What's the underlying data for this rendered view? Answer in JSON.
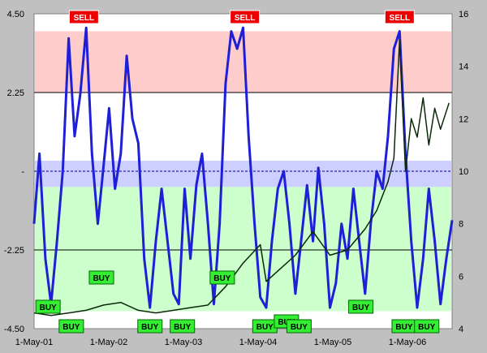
{
  "chart_data": {
    "type": "line",
    "title": "",
    "xlabel": "",
    "ylabel": "",
    "x_tick_labels": [
      "1-May-01",
      "1-May-02",
      "1-May-03",
      "1-May-04",
      "1-May-05",
      "1-May-06"
    ],
    "xlim": [
      "2001-02-01",
      "2007-01-31"
    ],
    "y_left": {
      "ticks": [
        "4.50",
        "2.25",
        "-",
        "-2.25",
        "-4.50"
      ],
      "ylim": [
        -4.5,
        4.5
      ]
    },
    "y_right": {
      "ticks": [
        "16",
        "14",
        "12",
        "10",
        "8",
        "6",
        "4"
      ],
      "ylim": [
        4,
        16
      ]
    },
    "bands": [
      {
        "name": "sell-zone",
        "from": 2.25,
        "to": 4.0,
        "color": "#ffcccc"
      },
      {
        "name": "neutral-zone",
        "from": -0.45,
        "to": 0.3,
        "color": "#cccfff"
      },
      {
        "name": "buy-zone",
        "from": -4.0,
        "to": -0.45,
        "color": "#ccffcc"
      }
    ],
    "reference_lines": [
      {
        "value": 2.25,
        "style": "solid"
      },
      {
        "value": -2.25,
        "style": "solid"
      },
      {
        "value": 0,
        "style": "dashed"
      }
    ],
    "series": [
      {
        "axis": "left",
        "color": "#1f1fd8",
        "points": [
          [
            "2001-02-01",
            -1.5
          ],
          [
            "2001-03-01",
            0.5
          ],
          [
            "2001-04-01",
            -2.5
          ],
          [
            "2001-05-01",
            -3.8
          ],
          [
            "2001-06-01",
            -2.0
          ],
          [
            "2001-07-01",
            0.0
          ],
          [
            "2001-08-01",
            3.8
          ],
          [
            "2001-09-01",
            1.0
          ],
          [
            "2001-10-01",
            2.2
          ],
          [
            "2001-11-01",
            4.1
          ],
          [
            "2001-12-01",
            0.5
          ],
          [
            "2002-01-01",
            -1.5
          ],
          [
            "2002-02-01",
            0.2
          ],
          [
            "2002-03-01",
            1.8
          ],
          [
            "2002-04-01",
            -0.5
          ],
          [
            "2002-05-01",
            0.5
          ],
          [
            "2002-06-01",
            3.3
          ],
          [
            "2002-07-01",
            1.5
          ],
          [
            "2002-08-01",
            0.8
          ],
          [
            "2002-09-01",
            -2.5
          ],
          [
            "2002-10-01",
            -3.9
          ],
          [
            "2002-11-01",
            -2.0
          ],
          [
            "2002-12-01",
            -0.5
          ],
          [
            "2003-01-01",
            -2.0
          ],
          [
            "2003-02-01",
            -3.5
          ],
          [
            "2003-03-01",
            -3.8
          ],
          [
            "2003-04-01",
            -0.5
          ],
          [
            "2003-05-01",
            -2.5
          ],
          [
            "2003-06-01",
            -0.4
          ],
          [
            "2003-07-01",
            0.5
          ],
          [
            "2003-08-01",
            -1.5
          ],
          [
            "2003-09-01",
            -3.8
          ],
          [
            "2003-10-01",
            -1.5
          ],
          [
            "2003-11-01",
            2.5
          ],
          [
            "2003-12-01",
            4.0
          ],
          [
            "2004-01-01",
            3.5
          ],
          [
            "2004-02-01",
            4.1
          ],
          [
            "2004-03-01",
            1.0
          ],
          [
            "2004-04-01",
            -1.5
          ],
          [
            "2004-05-01",
            -3.6
          ],
          [
            "2004-06-01",
            -3.9
          ],
          [
            "2004-07-01",
            -2.0
          ],
          [
            "2004-08-01",
            -0.5
          ],
          [
            "2004-09-01",
            0.0
          ],
          [
            "2004-10-01",
            -1.5
          ],
          [
            "2004-11-01",
            -3.5
          ],
          [
            "2004-12-01",
            -2.0
          ],
          [
            "2005-01-01",
            -0.4
          ],
          [
            "2005-02-01",
            -2.0
          ],
          [
            "2005-03-01",
            0.1
          ],
          [
            "2005-04-01",
            -1.5
          ],
          [
            "2005-05-01",
            -3.9
          ],
          [
            "2005-06-01",
            -3.2
          ],
          [
            "2005-07-01",
            -1.5
          ],
          [
            "2005-08-01",
            -2.5
          ],
          [
            "2005-09-01",
            -0.5
          ],
          [
            "2005-10-01",
            -2.0
          ],
          [
            "2005-11-01",
            -3.5
          ],
          [
            "2005-12-01",
            -1.5
          ],
          [
            "2006-01-01",
            0.0
          ],
          [
            "2006-02-01",
            -0.5
          ],
          [
            "2006-03-01",
            1.0
          ],
          [
            "2006-04-01",
            3.5
          ],
          [
            "2006-05-01",
            4.0
          ],
          [
            "2006-06-01",
            0.5
          ],
          [
            "2006-07-01",
            -2.0
          ],
          [
            "2006-08-01",
            -3.9
          ],
          [
            "2006-09-01",
            -2.5
          ],
          [
            "2006-10-01",
            -0.5
          ],
          [
            "2006-11-01",
            -2.0
          ],
          [
            "2006-12-01",
            -3.8
          ],
          [
            "2007-01-01",
            -2.5
          ],
          [
            "2007-01-31",
            -1.4
          ]
        ]
      },
      {
        "axis": "right",
        "color": "#0a280a",
        "points": [
          [
            "2001-02-01",
            4.6
          ],
          [
            "2001-05-01",
            4.5
          ],
          [
            "2001-08-01",
            4.6
          ],
          [
            "2001-11-01",
            4.7
          ],
          [
            "2002-02-01",
            4.9
          ],
          [
            "2002-05-01",
            5.0
          ],
          [
            "2002-08-01",
            4.7
          ],
          [
            "2002-11-01",
            4.6
          ],
          [
            "2003-02-01",
            4.7
          ],
          [
            "2003-05-01",
            4.8
          ],
          [
            "2003-08-01",
            4.9
          ],
          [
            "2003-11-01",
            5.6
          ],
          [
            "2004-02-01",
            6.5
          ],
          [
            "2004-05-01",
            7.2
          ],
          [
            "2004-06-01",
            5.8
          ],
          [
            "2004-08-01",
            6.2
          ],
          [
            "2004-11-01",
            6.8
          ],
          [
            "2005-02-01",
            7.7
          ],
          [
            "2005-05-01",
            6.8
          ],
          [
            "2005-08-01",
            7.0
          ],
          [
            "2005-11-01",
            7.8
          ],
          [
            "2006-01-01",
            8.5
          ],
          [
            "2006-03-01",
            9.6
          ],
          [
            "2006-04-01",
            10.5
          ],
          [
            "2006-05-01",
            15.0
          ],
          [
            "2006-06-01",
            10.0
          ],
          [
            "2006-07-01",
            12.0
          ],
          [
            "2006-08-01",
            11.3
          ],
          [
            "2006-09-01",
            12.8
          ],
          [
            "2006-10-01",
            11.0
          ],
          [
            "2006-11-01",
            12.4
          ],
          [
            "2006-12-01",
            11.6
          ],
          [
            "2007-01-15",
            12.6
          ]
        ]
      }
    ],
    "signals": [
      {
        "label": "SELL",
        "date": "2001-10-20",
        "row": "top"
      },
      {
        "label": "SELL",
        "date": "2004-02-10",
        "row": "top"
      },
      {
        "label": "SELL",
        "date": "2006-05-01",
        "row": "top"
      },
      {
        "label": "BUY",
        "date": "2001-04-15",
        "row": "low"
      },
      {
        "label": "BUY",
        "date": "2001-08-15",
        "row": "bottom"
      },
      {
        "label": "BUY",
        "date": "2002-01-20",
        "row": "mid"
      },
      {
        "label": "BUY",
        "date": "2002-10-01",
        "row": "bottom"
      },
      {
        "label": "BUY",
        "date": "2003-03-20",
        "row": "bottom"
      },
      {
        "label": "BUY",
        "date": "2003-10-15",
        "row": "mid"
      },
      {
        "label": "BUY",
        "date": "2004-05-25",
        "row": "bottom"
      },
      {
        "label": "BUY",
        "date": "2004-09-15",
        "row": "low2"
      },
      {
        "label": "BUY",
        "date": "2004-11-20",
        "row": "bottom"
      },
      {
        "label": "BUY",
        "date": "2005-10-10",
        "row": "low"
      },
      {
        "label": "BUY",
        "date": "2006-05-25",
        "row": "bottom"
      },
      {
        "label": "BUY",
        "date": "2006-09-20",
        "row": "bottom"
      }
    ]
  }
}
